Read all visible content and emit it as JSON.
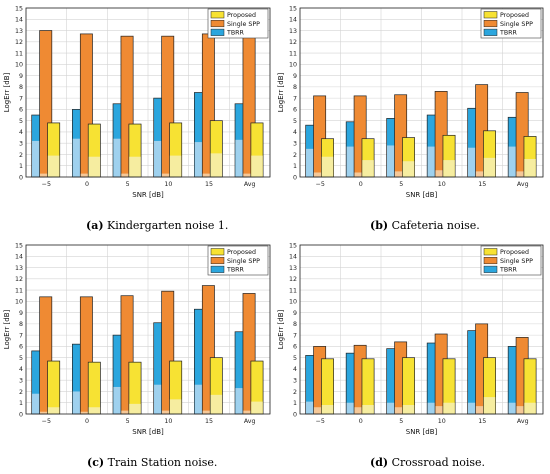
{
  "chart_data": [
    {
      "type": "bar",
      "caption_letter": "(a)",
      "caption_text": "Kindergarten noise 1.",
      "categories": [
        "−5",
        "0",
        "5",
        "10",
        "15",
        "Avg"
      ],
      "xlabel": "SNR [dB]",
      "ylabel": "LogErr [dB]",
      "ylim": [
        0,
        15
      ],
      "yticks": [
        "0",
        "1",
        "2",
        "3",
        "4",
        "5",
        "6",
        "7",
        "8",
        "9",
        "10",
        "11",
        "12",
        "13",
        "14",
        "15"
      ],
      "grid": true,
      "legend": "top-right",
      "series": [
        {
          "name": "Proposed",
          "values": [
            4.8,
            4.7,
            4.7,
            4.8,
            5.0,
            4.8
          ],
          "inner": [
            1.9,
            1.8,
            1.8,
            1.9,
            2.1,
            1.9
          ],
          "color": "#f7e233",
          "light": "#f6eda0"
        },
        {
          "name": "Single SPP",
          "values": [
            13.0,
            12.7,
            12.5,
            12.5,
            12.7,
            12.7
          ],
          "inner": [
            0.3,
            0.3,
            0.3,
            0.3,
            0.3,
            0.3
          ],
          "color": "#ef8a33",
          "light": "#f5c898"
        },
        {
          "name": "TBRR",
          "values": [
            5.5,
            6.0,
            6.5,
            7.0,
            7.5,
            6.5
          ],
          "inner": [
            3.2,
            3.4,
            3.4,
            3.2,
            3.1,
            3.3
          ],
          "color": "#2ba6de",
          "light": "#9fd1ee"
        }
      ]
    },
    {
      "type": "bar",
      "caption_letter": "(b)",
      "caption_text": "Cafeteria noise.",
      "categories": [
        "−5",
        "0",
        "5",
        "10",
        "15",
        "Avg"
      ],
      "xlabel": "SNR [dB]",
      "ylabel": "LogErr [dB]",
      "ylim": [
        0,
        15
      ],
      "yticks": [
        "0",
        "1",
        "2",
        "3",
        "4",
        "5",
        "6",
        "7",
        "8",
        "9",
        "10",
        "11",
        "12",
        "13",
        "14",
        "15"
      ],
      "grid": true,
      "legend": "top-right",
      "series": [
        {
          "name": "Proposed",
          "values": [
            3.4,
            3.4,
            3.5,
            3.7,
            4.1,
            3.6
          ],
          "inner": [
            1.8,
            1.5,
            1.4,
            1.5,
            1.7,
            1.6
          ],
          "color": "#f7e233",
          "light": "#f6eda0"
        },
        {
          "name": "Single SPP",
          "values": [
            7.2,
            7.2,
            7.3,
            7.6,
            8.2,
            7.5
          ],
          "inner": [
            0.4,
            0.4,
            0.5,
            0.6,
            0.5,
            0.5
          ],
          "color": "#ef8a33",
          "light": "#f5c898"
        },
        {
          "name": "TBRR",
          "values": [
            4.6,
            4.9,
            5.2,
            5.5,
            6.1,
            5.3
          ],
          "inner": [
            2.5,
            2.7,
            2.8,
            2.7,
            2.6,
            2.7
          ],
          "color": "#2ba6de",
          "light": "#9fd1ee"
        }
      ]
    },
    {
      "type": "bar",
      "caption_letter": "(c)",
      "caption_text": "Train Station noise.",
      "categories": [
        "−5",
        "0",
        "5",
        "10",
        "15",
        "Avg"
      ],
      "xlabel": "SNR [dB]",
      "ylabel": "LogErr [dB]",
      "ylim": [
        0,
        15
      ],
      "yticks": [
        "0",
        "1",
        "2",
        "3",
        "4",
        "5",
        "6",
        "7",
        "8",
        "9",
        "10",
        "11",
        "12",
        "13",
        "14",
        "15"
      ],
      "grid": true,
      "legend": "top-right",
      "series": [
        {
          "name": "Proposed",
          "values": [
            4.7,
            4.6,
            4.6,
            4.7,
            5.0,
            4.7
          ],
          "inner": [
            0.6,
            0.6,
            0.9,
            1.3,
            1.7,
            1.1
          ],
          "color": "#f7e233",
          "light": "#f6eda0"
        },
        {
          "name": "Single SPP",
          "values": [
            10.4,
            10.4,
            10.5,
            10.9,
            11.4,
            10.7
          ],
          "inner": [
            0.2,
            0.2,
            0.3,
            0.3,
            0.3,
            0.3
          ],
          "color": "#ef8a33",
          "light": "#f5c898"
        },
        {
          "name": "TBRR",
          "values": [
            5.6,
            6.2,
            7.0,
            8.1,
            9.3,
            7.3
          ],
          "inner": [
            1.8,
            2.0,
            2.4,
            2.6,
            2.6,
            2.3
          ],
          "color": "#2ba6de",
          "light": "#9fd1ee"
        }
      ]
    },
    {
      "type": "bar",
      "caption_letter": "(d)",
      "caption_text": "Crossroad noise.",
      "categories": [
        "−5",
        "0",
        "5",
        "10",
        "15",
        "Avg"
      ],
      "xlabel": "SNR [dB]",
      "ylabel": "LogErr [dB]",
      "ylim": [
        0,
        15
      ],
      "yticks": [
        "0",
        "1",
        "2",
        "3",
        "4",
        "5",
        "6",
        "7",
        "8",
        "9",
        "10",
        "11",
        "12",
        "13",
        "14",
        "15"
      ],
      "grid": true,
      "legend": "top-right",
      "series": [
        {
          "name": "Proposed",
          "values": [
            4.9,
            4.9,
            5.0,
            4.9,
            5.0,
            4.9
          ],
          "inner": [
            0.8,
            0.8,
            0.8,
            1.0,
            1.5,
            1.0
          ],
          "color": "#f7e233",
          "light": "#f6eda0"
        },
        {
          "name": "Single SPP",
          "values": [
            6.0,
            6.1,
            6.4,
            7.1,
            8.0,
            6.8
          ],
          "inner": [
            0.6,
            0.6,
            0.6,
            0.7,
            0.7,
            0.7
          ],
          "color": "#ef8a33",
          "light": "#f5c898"
        },
        {
          "name": "TBRR",
          "values": [
            5.2,
            5.4,
            5.8,
            6.3,
            7.4,
            6.0
          ],
          "inner": [
            1.1,
            1.0,
            1.0,
            1.0,
            1.0,
            1.0
          ],
          "color": "#2ba6de",
          "light": "#9fd1ee"
        }
      ]
    }
  ]
}
